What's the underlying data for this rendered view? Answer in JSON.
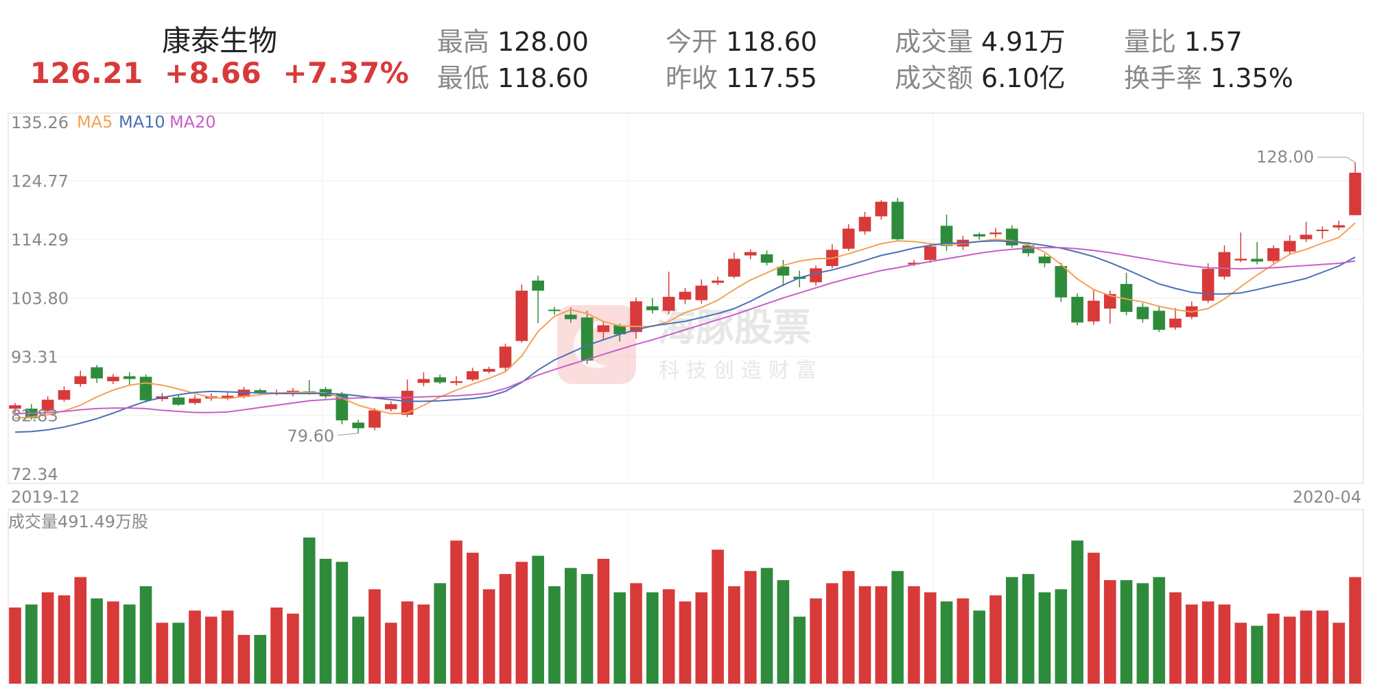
{
  "header": {
    "stock_name": "康泰生物",
    "price": "126.21",
    "change": "+8.66",
    "change_pct": "+7.37%",
    "stats": [
      {
        "label": "最高",
        "value": "128.00"
      },
      {
        "label": "今开",
        "value": "118.60"
      },
      {
        "label": "成交量",
        "value": "4.91万"
      },
      {
        "label": "量比",
        "value": "1.57"
      },
      {
        "label": "最低",
        "value": "118.60"
      },
      {
        "label": "昨收",
        "value": "117.55"
      },
      {
        "label": "成交额",
        "value": "6.10亿"
      },
      {
        "label": "换手率",
        "value": "1.35%"
      }
    ]
  },
  "watermark": {
    "title": "海豚股票",
    "subtitle": "科技创造财富"
  },
  "colors": {
    "up": "#d83a3a",
    "down": "#2e8b3c",
    "ma5": "#f5a055",
    "ma10": "#4a6fb5",
    "ma20": "#c85ec8",
    "text_up": "#d83a3a"
  },
  "chart_data": [
    {
      "type": "candlestick",
      "legend": [
        "MA5",
        "MA10",
        "MA20"
      ],
      "y_ticks": [
        "135.26",
        "124.77",
        "114.29",
        "103.80",
        "93.31",
        "82.83",
        "72.34"
      ],
      "ylim": [
        72.34,
        135.26
      ],
      "x_labels": [
        "2019-12",
        "2020-04"
      ],
      "annotations": {
        "high": "128.00",
        "low": "79.60"
      },
      "candles": [
        [
          84.0,
          84.6,
          85.0,
          83.2
        ],
        [
          84.0,
          82.3,
          84.8,
          82.0
        ],
        [
          83.6,
          85.6,
          86.2,
          83.4
        ],
        [
          85.6,
          87.3,
          88.0,
          85.2
        ],
        [
          88.4,
          89.8,
          90.8,
          87.9
        ],
        [
          91.4,
          89.4,
          91.8,
          88.6
        ],
        [
          88.9,
          89.7,
          90.2,
          88.4
        ],
        [
          89.8,
          89.3,
          90.5,
          88.2
        ],
        [
          89.7,
          85.5,
          90.1,
          85.1
        ],
        [
          85.7,
          86.2,
          86.8,
          85.3
        ],
        [
          86.0,
          84.7,
          86.4,
          84.5
        ],
        [
          85.0,
          85.8,
          86.4,
          84.7
        ],
        [
          85.8,
          86.2,
          86.7,
          85.4
        ],
        [
          85.8,
          86.3,
          86.9,
          85.5
        ],
        [
          86.1,
          87.4,
          87.9,
          85.8
        ],
        [
          87.3,
          86.9,
          87.6,
          86.5
        ],
        [
          86.8,
          86.9,
          87.4,
          86.4
        ],
        [
          86.6,
          87.2,
          87.7,
          86.2
        ],
        [
          87.1,
          87.0,
          89.1,
          86.5
        ],
        [
          87.5,
          86.2,
          87.9,
          85.8
        ],
        [
          86.6,
          81.9,
          87.0,
          81.2
        ],
        [
          81.5,
          80.5,
          82.0,
          79.6
        ],
        [
          80.6,
          83.7,
          84.1,
          80.1
        ],
        [
          83.9,
          84.8,
          85.3,
          83.5
        ],
        [
          82.9,
          87.2,
          89.2,
          82.5
        ],
        [
          88.6,
          89.3,
          90.5,
          88.0
        ],
        [
          89.6,
          88.7,
          90.1,
          88.4
        ],
        [
          88.6,
          88.9,
          89.8,
          88.1
        ],
        [
          89.2,
          90.7,
          91.3,
          88.9
        ],
        [
          90.6,
          91.1,
          91.5,
          90.3
        ],
        [
          91.3,
          95.1,
          95.6,
          90.7
        ],
        [
          96.1,
          105.1,
          106.2,
          95.8
        ],
        [
          106.9,
          105.1,
          107.8,
          99.3
        ],
        [
          101.7,
          101.6,
          102.2,
          100.8
        ],
        [
          100.8,
          100.0,
          102.1,
          99.4
        ],
        [
          100.3,
          92.6,
          101.5,
          92.0
        ],
        [
          97.7,
          98.9,
          99.7,
          96.3
        ],
        [
          98.9,
          97.3,
          99.2,
          96.0
        ],
        [
          97.7,
          103.2,
          103.9,
          96.5
        ],
        [
          102.3,
          101.6,
          103.8,
          101.0
        ],
        [
          101.5,
          104.0,
          108.5,
          100.9
        ],
        [
          103.5,
          104.9,
          105.6,
          102.7
        ],
        [
          103.4,
          106.0,
          107.1,
          102.8
        ],
        [
          106.5,
          106.9,
          107.6,
          106.1
        ],
        [
          107.6,
          110.8,
          111.9,
          107.3
        ],
        [
          111.4,
          112.0,
          112.5,
          110.7
        ],
        [
          111.6,
          110.1,
          112.3,
          109.6
        ],
        [
          109.4,
          107.8,
          110.6,
          105.9
        ],
        [
          107.6,
          107.2,
          108.7,
          105.7
        ],
        [
          106.6,
          109.1,
          109.6,
          106.0
        ],
        [
          109.5,
          112.4,
          113.4,
          109.1
        ],
        [
          112.6,
          116.2,
          117.0,
          112.2
        ],
        [
          115.7,
          118.3,
          119.2,
          115.1
        ],
        [
          118.4,
          121.0,
          121.3,
          117.8
        ],
        [
          121.0,
          114.3,
          121.7,
          114.0
        ],
        [
          109.8,
          110.1,
          110.6,
          109.5
        ],
        [
          110.6,
          113.0,
          113.6,
          110.1
        ],
        [
          116.7,
          113.1,
          118.7,
          112.2
        ],
        [
          113.0,
          114.2,
          114.9,
          112.4
        ],
        [
          115.2,
          114.8,
          115.5,
          114.2
        ],
        [
          115.2,
          115.5,
          116.3,
          114.6
        ],
        [
          116.2,
          113.2,
          116.8,
          112.8
        ],
        [
          113.2,
          111.8,
          113.8,
          111.2
        ],
        [
          111.2,
          110.0,
          111.7,
          109.3
        ],
        [
          109.5,
          103.9,
          110.1,
          103.1
        ],
        [
          104.0,
          99.4,
          104.6,
          98.9
        ],
        [
          99.6,
          103.3,
          105.4,
          99.0
        ],
        [
          101.9,
          104.5,
          105.1,
          99.2
        ],
        [
          106.3,
          101.3,
          108.3,
          100.7
        ],
        [
          102.2,
          100.0,
          102.9,
          99.4
        ],
        [
          101.5,
          98.1,
          102.2,
          97.7
        ],
        [
          98.5,
          100.1,
          102.0,
          98.1
        ],
        [
          100.4,
          102.3,
          103.2,
          100.0
        ],
        [
          103.3,
          109.0,
          110.0,
          102.9
        ],
        [
          107.6,
          112.0,
          113.2,
          107.1
        ],
        [
          110.5,
          110.8,
          115.5,
          110.2
        ],
        [
          110.8,
          110.3,
          113.8,
          109.8
        ],
        [
          110.4,
          112.7,
          113.2,
          110.0
        ],
        [
          112.1,
          114.0,
          115.0,
          111.6
        ],
        [
          114.3,
          115.1,
          117.4,
          113.8
        ],
        [
          115.8,
          116.0,
          116.6,
          114.4
        ],
        [
          116.4,
          116.8,
          117.6,
          115.9
        ],
        [
          118.6,
          126.2,
          128.0,
          118.6
        ]
      ],
      "ma5": [
        82.3,
        82.5,
        82.9,
        83.6,
        84.6,
        86.1,
        87.3,
        88.2,
        88.6,
        88.2,
        87.5,
        86.7,
        86.0,
        85.8,
        86.2,
        86.5,
        86.8,
        86.9,
        86.9,
        86.8,
        85.9,
        84.6,
        83.8,
        83.1,
        83.2,
        84.6,
        86.1,
        87.3,
        88.4,
        89.4,
        90.6,
        93.4,
        97.8,
        100.5,
        101.7,
        101.0,
        99.6,
        98.8,
        98.7,
        98.7,
        99.6,
        101.2,
        102.1,
        103.4,
        105.3,
        107.0,
        108.3,
        109.6,
        110.4,
        110.8,
        110.9,
        111.7,
        112.6,
        113.5,
        114.0,
        113.9,
        113.5,
        113.3,
        113.5,
        113.9,
        114.3,
        114.0,
        113.3,
        112.0,
        109.8,
        107.2,
        105.3,
        104.2,
        103.6,
        103.1,
        102.3,
        101.7,
        101.3,
        101.9,
        103.6,
        105.8,
        107.9,
        109.8,
        111.6,
        112.5,
        113.6,
        114.6,
        117.2
      ],
      "ma10": [
        79.8,
        79.9,
        80.2,
        80.7,
        81.4,
        82.2,
        83.2,
        84.3,
        85.3,
        86.0,
        86.5,
        86.9,
        87.1,
        87.0,
        86.9,
        86.8,
        86.7,
        86.7,
        86.7,
        86.7,
        86.6,
        86.3,
        85.9,
        85.6,
        85.3,
        85.3,
        85.4,
        85.6,
        85.8,
        86.2,
        87.1,
        88.7,
        90.9,
        92.7,
        94.0,
        95.3,
        96.3,
        97.3,
        98.1,
        98.8,
        99.2,
        99.6,
        100.3,
        101.0,
        101.9,
        103.2,
        104.7,
        106.1,
        107.4,
        108.2,
        108.8,
        109.6,
        110.5,
        111.4,
        112.0,
        112.7,
        113.2,
        113.6,
        113.6,
        113.9,
        114.0,
        113.9,
        113.6,
        113.2,
        112.7,
        112.0,
        111.2,
        110.1,
        108.9,
        107.6,
        106.3,
        105.5,
        104.8,
        104.5,
        104.5,
        104.7,
        105.3,
        106.0,
        106.6,
        107.3,
        108.4,
        109.5,
        111.1
      ],
      "ma20": [
        83.1,
        83.2,
        83.3,
        83.5,
        83.8,
        84.0,
        84.1,
        84.1,
        84.0,
        83.7,
        83.5,
        83.3,
        83.3,
        83.4,
        83.8,
        84.2,
        84.6,
        85.0,
        85.4,
        85.6,
        85.8,
        85.9,
        86.0,
        86.0,
        86.0,
        86.1,
        86.2,
        86.3,
        86.5,
        86.8,
        87.6,
        88.8,
        90.0,
        91.0,
        91.9,
        92.8,
        93.7,
        94.6,
        95.5,
        96.3,
        97.2,
        98.1,
        99.0,
        99.9,
        100.8,
        101.8,
        102.8,
        103.8,
        104.7,
        105.6,
        106.5,
        107.3,
        108.0,
        108.7,
        109.2,
        109.8,
        110.3,
        110.8,
        111.3,
        111.8,
        112.2,
        112.5,
        112.7,
        112.8,
        112.8,
        112.6,
        112.3,
        111.9,
        111.4,
        110.9,
        110.4,
        109.9,
        109.5,
        109.2,
        109.1,
        109.0,
        109.1,
        109.2,
        109.4,
        109.6,
        109.8,
        110.0,
        110.4
      ]
    },
    {
      "type": "bar",
      "label": "成交量491.49万股",
      "values": [
        2.5,
        2.6,
        3.0,
        2.9,
        3.5,
        2.8,
        2.7,
        2.6,
        3.2,
        2.0,
        2.0,
        2.4,
        2.2,
        2.4,
        1.6,
        1.6,
        2.5,
        2.3,
        4.8,
        4.1,
        4.0,
        2.2,
        3.1,
        2.0,
        2.7,
        2.6,
        3.3,
        4.7,
        4.3,
        3.1,
        3.6,
        4.0,
        4.2,
        3.2,
        3.8,
        3.6,
        4.1,
        3.0,
        3.3,
        3.0,
        3.1,
        2.7,
        3.0,
        4.4,
        3.2,
        3.7,
        3.8,
        3.4,
        2.2,
        2.8,
        3.3,
        3.7,
        3.2,
        3.2,
        3.7,
        3.2,
        3.0,
        2.7,
        2.8,
        2.4,
        2.9,
        3.5,
        3.6,
        3.0,
        3.1,
        4.7,
        4.3,
        3.4,
        3.4,
        3.3,
        3.5,
        3.0,
        2.6,
        2.7,
        2.6,
        2.0,
        1.9,
        2.3,
        2.2,
        2.4,
        2.4,
        2.0,
        3.5
      ],
      "ylim": [
        0,
        5.0
      ]
    }
  ]
}
